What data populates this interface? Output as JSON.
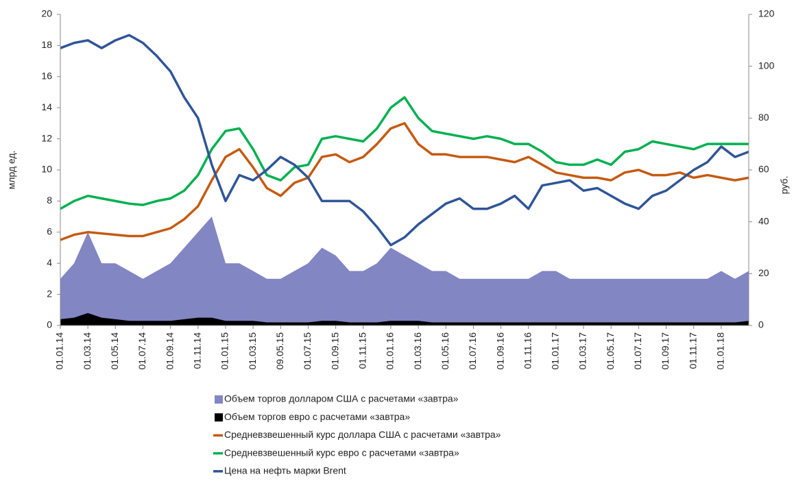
{
  "chart_data": {
    "type": "combo",
    "y_label": "млрд ед.",
    "y2_label": "руб.",
    "categories": [
      "01.01.14",
      null,
      "01.03.14",
      null,
      "01.05.14",
      null,
      "01.07.14",
      null,
      "01.09.14",
      null,
      "01.11.14",
      null,
      "01.01.15",
      null,
      "01.03.15",
      null,
      "09.05.15",
      null,
      "01.07.15",
      null,
      "01.09.15",
      null,
      "01.11.15",
      null,
      "01.01.16",
      null,
      "01.03.16",
      null,
      "01.05.16",
      null,
      "01.07.16",
      null,
      "01.09.16",
      null,
      "01.11.16",
      null,
      "01.01.17",
      null,
      "01.03.17",
      null,
      "01.05.17",
      null,
      "01.07.17",
      null,
      "01.09.17",
      null,
      "01.11.17",
      null,
      "01.01.18",
      null,
      null
    ],
    "ylim": [
      0,
      20
    ],
    "yticks": [
      0,
      2,
      4,
      6,
      8,
      10,
      12,
      14,
      16,
      18,
      20
    ],
    "y2lim": [
      0,
      120
    ],
    "y2ticks": [
      0,
      20,
      40,
      60,
      80,
      100,
      120
    ],
    "series": [
      {
        "name": "Объем торгов долларом США с расчетами «завтра»",
        "type": "area",
        "color": "#8286c2",
        "values": [
          3,
          4,
          6,
          4,
          4,
          3.5,
          3,
          3.5,
          4,
          5,
          6,
          7,
          4,
          4,
          3.5,
          3,
          3,
          3.5,
          4,
          5,
          4.5,
          3.5,
          3.5,
          4,
          5,
          4.5,
          4,
          3.5,
          3.5,
          3,
          3,
          3,
          3,
          3,
          3,
          3.5,
          3.5,
          3,
          3,
          3,
          3,
          3,
          3,
          3,
          3,
          3,
          3,
          3,
          3.5,
          3,
          3.5
        ]
      },
      {
        "name": "Объем торгов евро с расчетами «завтра»",
        "type": "area",
        "color": "#000000",
        "values": [
          0.4,
          0.5,
          0.8,
          0.5,
          0.4,
          0.3,
          0.3,
          0.3,
          0.3,
          0.4,
          0.5,
          0.5,
          0.3,
          0.3,
          0.3,
          0.2,
          0.2,
          0.2,
          0.2,
          0.3,
          0.3,
          0.2,
          0.2,
          0.2,
          0.3,
          0.3,
          0.3,
          0.2,
          0.2,
          0.2,
          0.2,
          0.2,
          0.2,
          0.2,
          0.2,
          0.2,
          0.2,
          0.2,
          0.2,
          0.2,
          0.2,
          0.2,
          0.2,
          0.2,
          0.2,
          0.2,
          0.2,
          0.2,
          0.2,
          0.2,
          0.3
        ]
      },
      {
        "name": "Средневзвешенный курс доллара США с расчетами «завтра»",
        "type": "line",
        "axis": "y2",
        "color": "#c55a11",
        "values": [
          33,
          35,
          36,
          35.5,
          35,
          34.5,
          34.5,
          36,
          37.5,
          41,
          46,
          56,
          65,
          68,
          61,
          53,
          50,
          55,
          57,
          65,
          66,
          63,
          65,
          70,
          76,
          78,
          70,
          66,
          66,
          65,
          65,
          65,
          64,
          63,
          65,
          62,
          59,
          58,
          57,
          57,
          56,
          59,
          60,
          58,
          58,
          59,
          57,
          58,
          57,
          56,
          57
        ]
      },
      {
        "name": "Средневзвешенный курс евро с расчетами «завтра»",
        "type": "line",
        "axis": "y2",
        "color": "#00b050",
        "values": [
          45,
          48,
          50,
          49,
          48,
          47,
          46.5,
          48,
          49,
          52,
          58,
          68,
          75,
          76,
          68,
          58,
          56,
          61,
          62,
          72,
          73,
          72,
          71,
          76,
          84,
          88,
          80,
          75,
          74,
          73,
          72,
          73,
          72,
          70,
          70,
          67,
          63,
          62,
          62,
          64,
          62,
          67,
          68,
          71,
          70,
          69,
          68,
          70,
          70,
          70,
          70
        ]
      },
      {
        "name": "Цена на нефть марки Brent",
        "type": "line",
        "axis": "y2",
        "color": "#2f5597",
        "values": [
          107,
          109,
          110,
          107,
          110,
          112,
          109,
          104,
          98,
          88,
          80,
          62,
          48,
          58,
          56,
          60,
          65,
          62,
          57,
          48,
          48,
          48,
          44,
          38,
          31,
          34,
          39,
          43,
          47,
          49,
          45,
          45,
          47,
          50,
          45,
          54,
          55,
          56,
          52,
          53,
          50,
          47,
          45,
          50,
          52,
          56,
          60,
          63,
          69,
          65,
          67
        ]
      }
    ]
  }
}
